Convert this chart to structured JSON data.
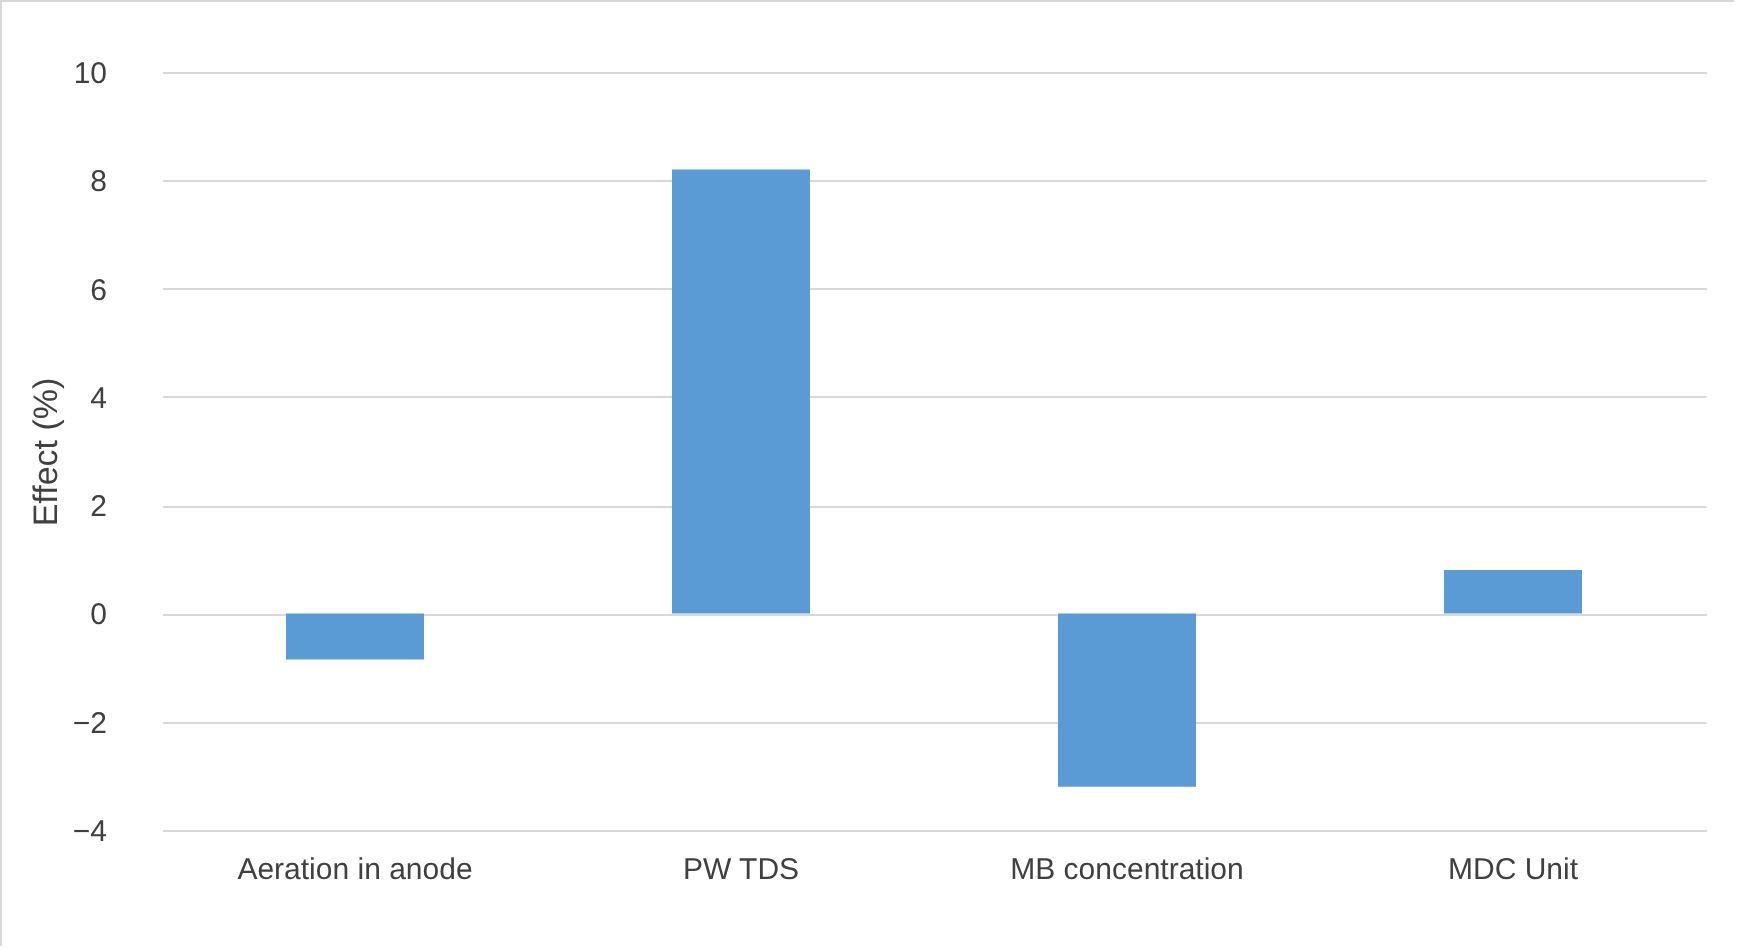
{
  "chart_data": {
    "type": "bar",
    "ylabel": "Effect (%)",
    "categories": [
      "Aeration in anode",
      "PW TDS",
      "MB concentration",
      "MDC Unit"
    ],
    "values": [
      -0.85,
      8.2,
      -3.2,
      0.8
    ],
    "color": "#5b9bd5",
    "ylim": [
      -4,
      10
    ],
    "yticks": [
      -4,
      -2,
      0,
      2,
      4,
      6,
      8,
      10
    ],
    "grid": "y"
  }
}
